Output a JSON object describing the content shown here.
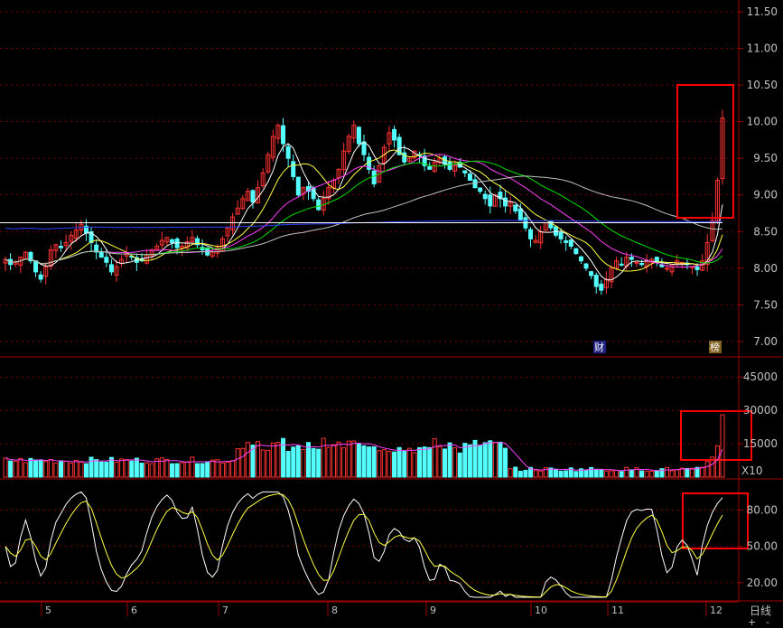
{
  "chart_data": [
    {
      "type": "candlestick",
      "panel": "price",
      "y_ticks": [
        "11.50",
        "11.00",
        "10.50",
        "10.00",
        "9.50",
        "9.00",
        "8.50",
        "8.00",
        "7.50",
        "7.00"
      ],
      "ylim": [
        6.85,
        11.6
      ],
      "x_labels": [
        "5",
        "6",
        "7",
        "8",
        "9",
        "10",
        "11",
        "12"
      ],
      "event_tags": [
        {
          "label": "财",
          "month": "11"
        },
        {
          "label": "榜",
          "month": "12"
        }
      ],
      "candles_close": [
        8.12,
        8.05,
        8.08,
        8.15,
        8.22,
        8.1,
        7.95,
        7.85,
        8.02,
        8.25,
        8.32,
        8.28,
        8.35,
        8.45,
        8.52,
        8.6,
        8.48,
        8.35,
        8.22,
        8.15,
        8.08,
        7.95,
        8.02,
        8.12,
        8.2,
        8.15,
        8.08,
        8.1,
        8.18,
        8.25,
        8.3,
        8.38,
        8.42,
        8.35,
        8.28,
        8.3,
        8.36,
        8.42,
        8.32,
        8.25,
        8.18,
        8.22,
        8.28,
        8.4,
        8.55,
        8.7,
        8.82,
        8.95,
        9.05,
        8.9,
        9.1,
        9.3,
        9.55,
        9.8,
        9.95,
        9.7,
        9.5,
        9.25,
        9.0,
        9.1,
        9.05,
        8.95,
        8.8,
        8.95,
        9.1,
        9.2,
        9.35,
        9.6,
        9.8,
        9.95,
        9.7,
        9.55,
        9.35,
        9.15,
        9.4,
        9.65,
        9.85,
        9.75,
        9.55,
        9.45,
        9.5,
        9.6,
        9.55,
        9.4,
        9.35,
        9.45,
        9.5,
        9.42,
        9.35,
        9.4,
        9.38,
        9.3,
        9.2,
        9.1,
        9.05,
        8.95,
        8.85,
        9.0,
        8.95,
        8.85,
        8.9,
        8.78,
        8.65,
        8.55,
        8.4,
        8.38,
        8.5,
        8.62,
        8.55,
        8.45,
        8.4,
        8.35,
        8.3,
        8.2,
        8.1,
        8.0,
        7.9,
        7.75,
        7.7,
        7.85,
        8.0,
        8.1,
        8.05,
        8.15,
        8.12,
        8.08,
        8.05,
        8.1,
        8.12,
        8.08,
        8.02,
        8.0,
        8.05,
        8.1,
        8.08,
        8.05,
        8.02,
        7.98,
        8.1,
        8.35,
        8.65,
        9.2,
        10.05
      ],
      "ma_series": [
        {
          "color": "#ffffff",
          "desc": "MA short"
        },
        {
          "color": "#ffff40",
          "desc": "MA 10"
        },
        {
          "color": "#ff40ff",
          "desc": "MA 20"
        },
        {
          "color": "#00e000",
          "desc": "MA 30"
        },
        {
          "color": "#c0c0c0",
          "desc": "MA 60"
        },
        {
          "color": "#3040ff",
          "desc": "MA 120"
        }
      ]
    },
    {
      "type": "bar",
      "panel": "volume",
      "y_ticks": [
        "45000",
        "30000",
        "15000"
      ],
      "ylim": [
        0,
        52000
      ],
      "unit_label": "X10"
    },
    {
      "type": "line",
      "panel": "kdj",
      "y_ticks": [
        "80.00",
        "50.00",
        "20.00"
      ],
      "ylim": [
        5,
        105
      ]
    }
  ],
  "period": "日线",
  "zoom_in": "+",
  "zoom_out": "-",
  "colors": {
    "up": "#ff3232",
    "down": "#54ffff",
    "axis": "#a00000",
    "text": "#c0c0c0",
    "highlight": "#ff0000"
  }
}
